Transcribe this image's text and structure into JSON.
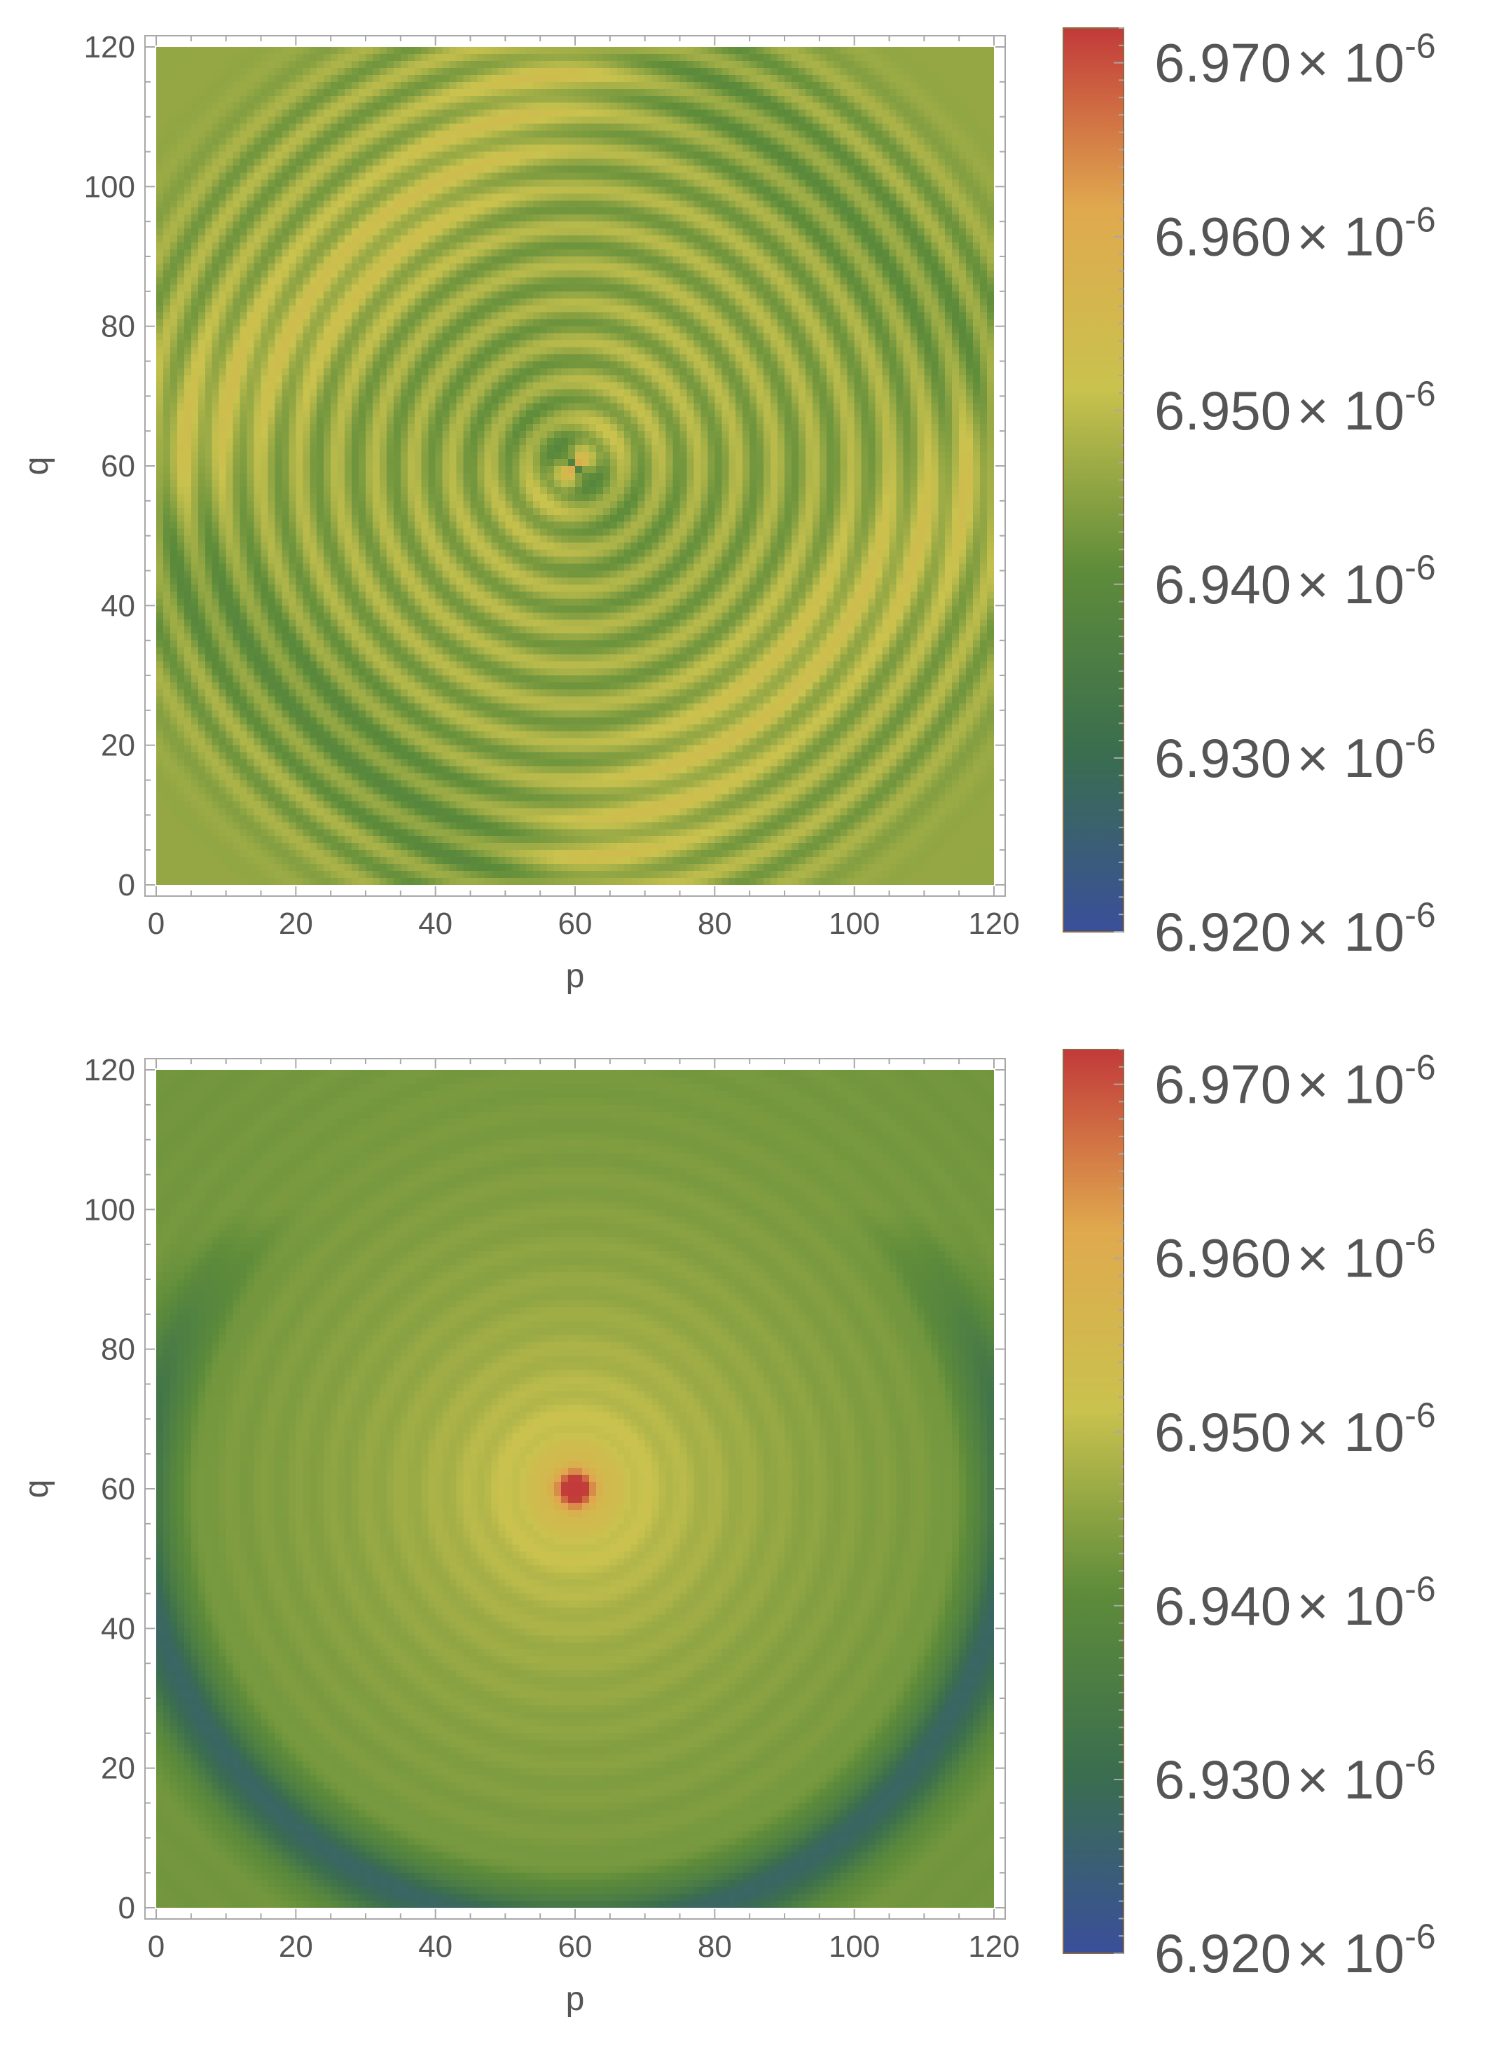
{
  "chart_data": [
    {
      "type": "heatmap",
      "title": "",
      "xlabel": "p",
      "ylabel": "q",
      "xlim": [
        0,
        120
      ],
      "ylim": [
        0,
        120
      ],
      "xticks": [
        "0",
        "20",
        "40",
        "60",
        "80",
        "100",
        "120"
      ],
      "yticks": [
        "0",
        "20",
        "40",
        "60",
        "80",
        "100",
        "120"
      ],
      "pattern": "concentric ripples centred at (60, 60) with a four-lobed dipole at the centre; diagonal ridge from (0,60)-(60,120) and (60,0)-(120,60)",
      "value_range": [
        6.92e-06,
        6.972e-06
      ],
      "colorbar": {
        "ticks": [
          {
            "value": 6.92e-06,
            "mantissa": "6.920",
            "base": "× 10",
            "exponent": "-6"
          },
          {
            "value": 6.93e-06,
            "mantissa": "6.930",
            "base": "× 10",
            "exponent": "-6"
          },
          {
            "value": 6.94e-06,
            "mantissa": "6.940",
            "base": "× 10",
            "exponent": "-6"
          },
          {
            "value": 6.95e-06,
            "mantissa": "6.950",
            "base": "× 10",
            "exponent": "-6"
          },
          {
            "value": 6.96e-06,
            "mantissa": "6.960",
            "base": "× 10",
            "exponent": "-6"
          },
          {
            "value": 6.97e-06,
            "mantissa": "6.970",
            "base": "× 10",
            "exponent": "-6"
          }
        ],
        "colors": [
          "#3a4f9a",
          "#3a6e4e",
          "#5e8c3a",
          "#c9c24e",
          "#e0a94e",
          "#c23a3a"
        ]
      }
    },
    {
      "type": "heatmap",
      "title": "",
      "xlabel": "p",
      "ylabel": "q",
      "xlim": [
        0,
        120
      ],
      "ylim": [
        0,
        120
      ],
      "xticks": [
        "0",
        "20",
        "40",
        "60",
        "80",
        "100",
        "120"
      ],
      "yticks": [
        "0",
        "20",
        "40",
        "60",
        "80",
        "100",
        "120"
      ],
      "pattern": "radial peak at (60, 60) decaying outward; low-valued blue ring near the lower edge and sides",
      "value_range": [
        6.92e-06,
        6.972e-06
      ],
      "colorbar": {
        "ticks": [
          {
            "value": 6.92e-06,
            "mantissa": "6.920",
            "base": "× 10",
            "exponent": "-6"
          },
          {
            "value": 6.93e-06,
            "mantissa": "6.930",
            "base": "× 10",
            "exponent": "-6"
          },
          {
            "value": 6.94e-06,
            "mantissa": "6.940",
            "base": "× 10",
            "exponent": "-6"
          },
          {
            "value": 6.95e-06,
            "mantissa": "6.950",
            "base": "× 10",
            "exponent": "-6"
          },
          {
            "value": 6.96e-06,
            "mantissa": "6.960",
            "base": "× 10",
            "exponent": "-6"
          },
          {
            "value": 6.97e-06,
            "mantissa": "6.970",
            "base": "× 10",
            "exponent": "-6"
          }
        ],
        "colors": [
          "#3a4f9a",
          "#3a6e4e",
          "#5e8c3a",
          "#c9c24e",
          "#e0a94e",
          "#c23a3a"
        ]
      }
    }
  ]
}
